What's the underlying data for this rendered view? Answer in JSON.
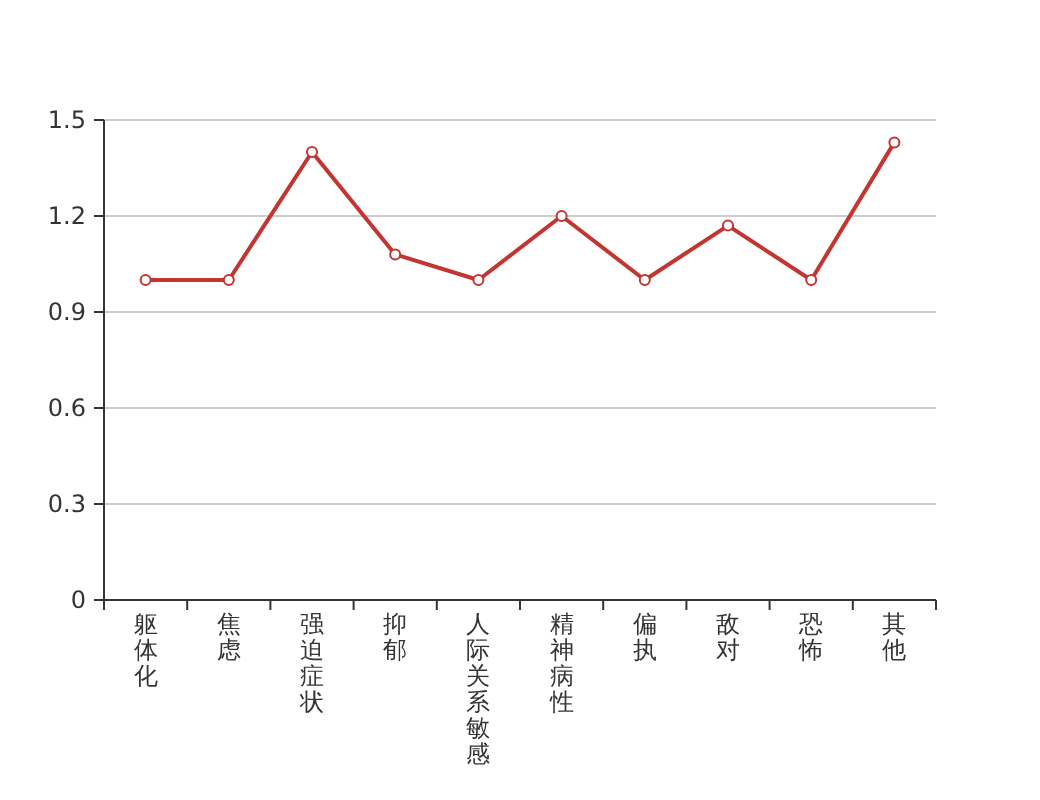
{
  "chart_data": {
    "type": "line",
    "categories": [
      "躯体化",
      "焦虑",
      "强迫症状",
      "抑郁",
      "人际关系敏感",
      "精神病性",
      "偏执",
      "敌对",
      "恐怖",
      "其他"
    ],
    "series": [
      {
        "color": "#c23531",
        "values": [
          1.0,
          1.0,
          1.4,
          1.08,
          1.0,
          1.2,
          1.0,
          1.17,
          1.0,
          1.43
        ]
      }
    ],
    "ylim": [
      0,
      1.5
    ],
    "yticks": [
      0,
      0.3,
      0.6,
      0.9,
      1.2,
      1.5
    ],
    "grid": "y",
    "marker": "circle",
    "line_style": "solid"
  }
}
